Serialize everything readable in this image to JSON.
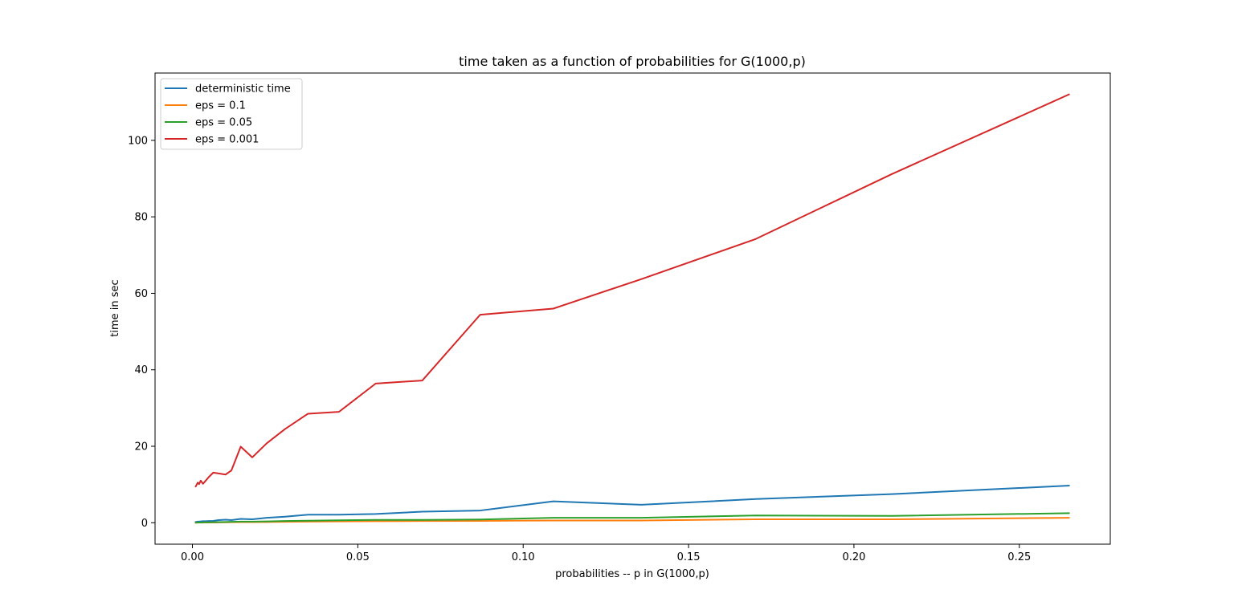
{
  "chart_data": {
    "type": "line",
    "title": "time taken as a function of probabilities for G(1000,p)",
    "xlabel": "probabilities -- p in G(1000,p)",
    "ylabel": "time in sec",
    "xlim": [
      -0.0113,
      0.2775
    ],
    "ylim": [
      -5.6,
      117.6
    ],
    "xticks": [
      0.0,
      0.05,
      0.1,
      0.15,
      0.2,
      0.25
    ],
    "xtick_labels": [
      "0.00",
      "0.05",
      "0.10",
      "0.15",
      "0.20",
      "0.25"
    ],
    "yticks": [
      0,
      20,
      40,
      60,
      80,
      100
    ],
    "ytick_labels": [
      "0",
      "20",
      "40",
      "60",
      "80",
      "100"
    ],
    "grid": false,
    "legend_position": "top-left",
    "x": [
      0.001,
      0.0013,
      0.0016,
      0.002,
      0.0025,
      0.0032,
      0.004,
      0.005,
      0.0063,
      0.0079,
      0.01,
      0.0118,
      0.0146,
      0.0181,
      0.0225,
      0.028,
      0.0349,
      0.0443,
      0.0554,
      0.0695,
      0.087,
      0.1091,
      0.1357,
      0.1703,
      0.2115,
      0.265
    ],
    "series": [
      {
        "name": "deterministic time",
        "color": "#1f77b4",
        "values": [
          0.2,
          0.25,
          0.3,
          0.3,
          0.35,
          0.4,
          0.4,
          0.45,
          0.5,
          0.7,
          0.8,
          0.7,
          1.0,
          0.9,
          1.3,
          1.6,
          2.1,
          2.1,
          2.3,
          2.9,
          3.2,
          5.6,
          4.7,
          6.2,
          7.5,
          9.7
        ]
      },
      {
        "name": "eps = 0.1",
        "color": "#ff7f0e",
        "values": [
          0.02,
          0.02,
          0.03,
          0.03,
          0.04,
          0.05,
          0.06,
          0.07,
          0.08,
          0.1,
          0.12,
          0.14,
          0.16,
          0.18,
          0.2,
          0.25,
          0.3,
          0.35,
          0.4,
          0.45,
          0.5,
          0.6,
          0.6,
          0.9,
          0.9,
          1.3
        ]
      },
      {
        "name": "eps = 0.05",
        "color": "#2ca02c",
        "values": [
          0.05,
          0.05,
          0.06,
          0.07,
          0.08,
          0.1,
          0.12,
          0.13,
          0.15,
          0.18,
          0.2,
          0.25,
          0.3,
          0.3,
          0.35,
          0.45,
          0.55,
          0.65,
          0.75,
          0.75,
          0.85,
          1.3,
          1.3,
          1.9,
          1.8,
          2.5
        ]
      },
      {
        "name": "eps = 0.001",
        "color": "#d62728",
        "values": [
          9.5,
          10.0,
          10.5,
          10.1,
          11.0,
          10.2,
          11.0,
          12.0,
          13.1,
          12.9,
          12.6,
          13.7,
          19.9,
          17.1,
          20.8,
          24.5,
          28.5,
          29.0,
          36.4,
          37.2,
          54.4,
          56.0,
          63.7,
          74.2,
          91.2,
          112.0
        ]
      }
    ]
  }
}
